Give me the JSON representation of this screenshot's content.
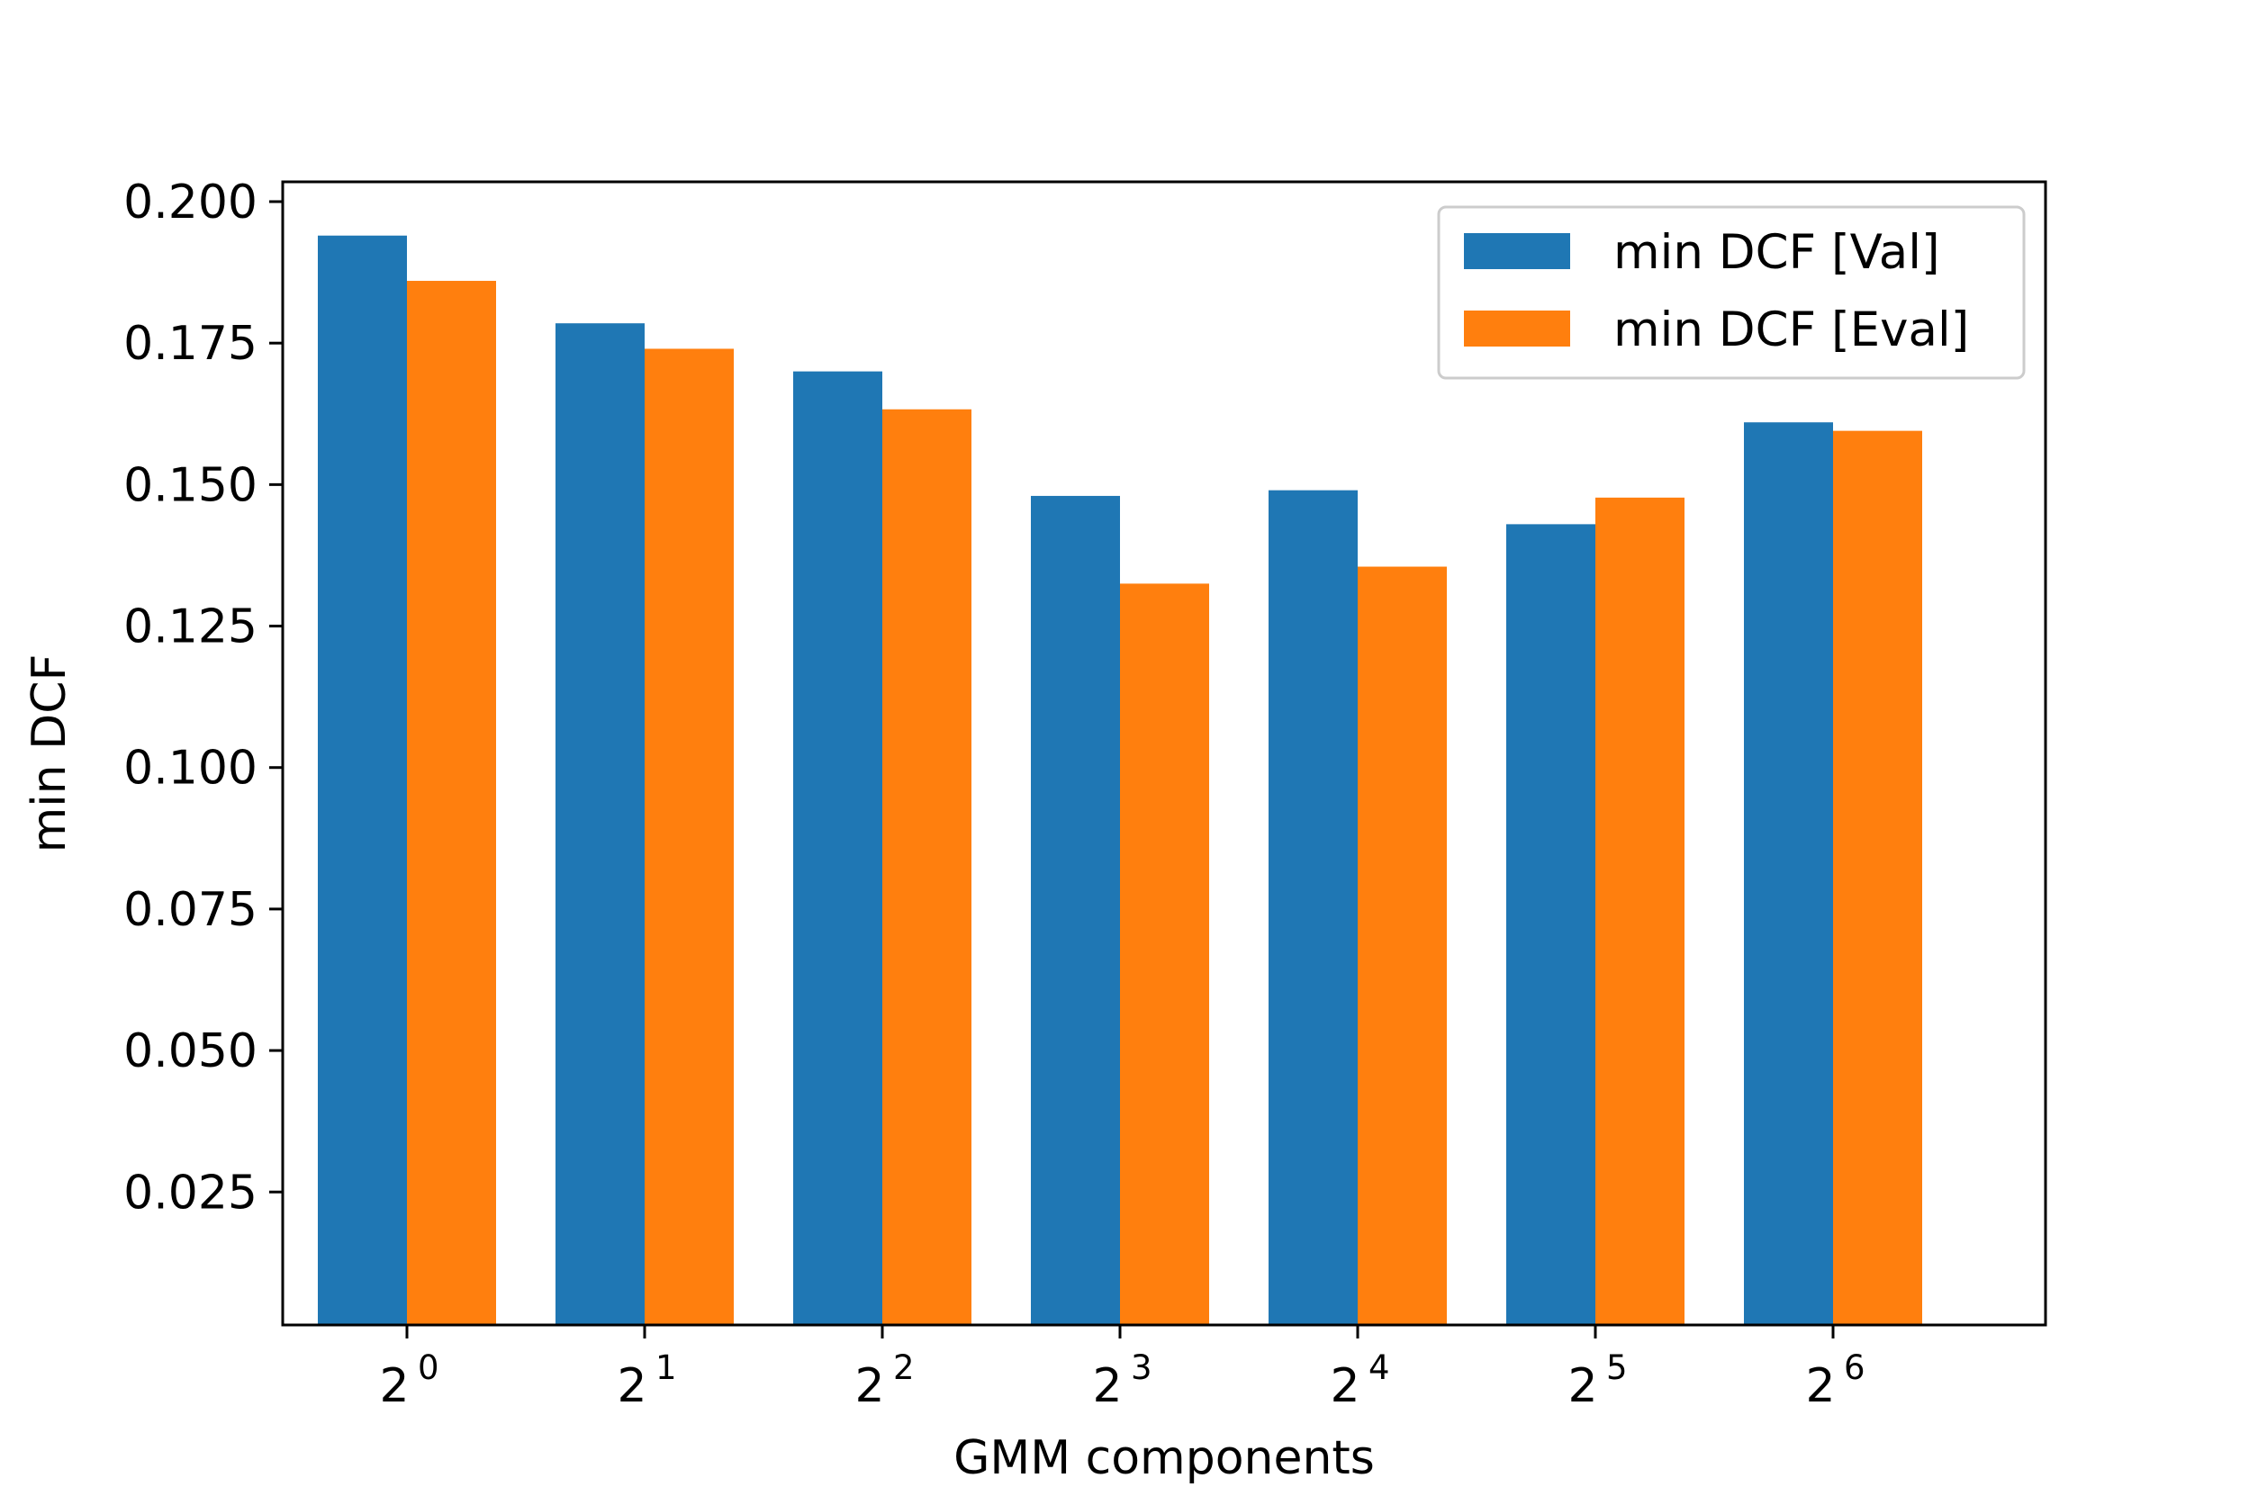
{
  "chart_data": {
    "type": "bar",
    "title": "",
    "xlabel": "GMM components",
    "ylabel": "min DCF",
    "categories": [
      {
        "base": "2",
        "exp": "0"
      },
      {
        "base": "2",
        "exp": "1"
      },
      {
        "base": "2",
        "exp": "2"
      },
      {
        "base": "2",
        "exp": "3"
      },
      {
        "base": "2",
        "exp": "4"
      },
      {
        "base": "2",
        "exp": "5"
      },
      {
        "base": "2",
        "exp": "6"
      }
    ],
    "series": [
      {
        "name": "min DCF [Val]",
        "color": "#1f77b4",
        "values": [
          0.194,
          0.1785,
          0.17,
          0.148,
          0.149,
          0.143,
          0.161
        ]
      },
      {
        "name": "min DCF [Eval]",
        "color": "#ff7f0e",
        "values": [
          0.186,
          0.174,
          0.1633,
          0.1325,
          0.1355,
          0.1477,
          0.1595
        ]
      }
    ],
    "ylim": [
      0.0015,
      0.2035
    ],
    "yticks": [
      "0.025",
      "0.050",
      "0.075",
      "0.100",
      "0.125",
      "0.150",
      "0.175",
      "0.200"
    ],
    "grid": false,
    "legend_position": "upper right"
  }
}
